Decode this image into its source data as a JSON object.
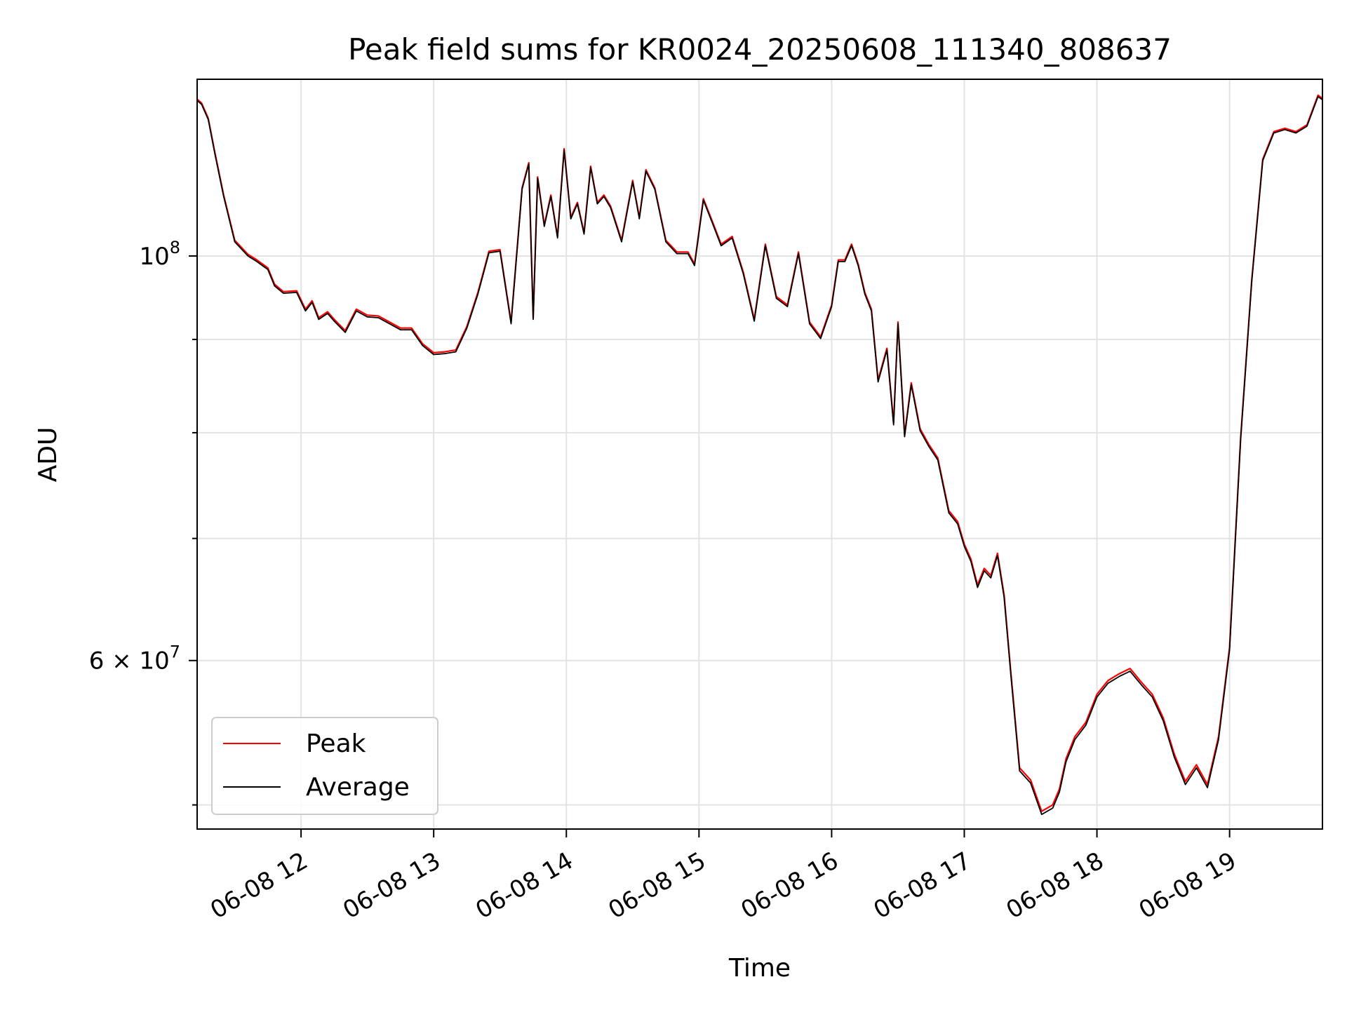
{
  "chart_data": {
    "type": "line",
    "title": "Peak field sums for KR0024_20250608_111340_808637",
    "xlabel": "Time",
    "ylabel": "ADU",
    "x_scale": "time",
    "y_scale": "log",
    "xlim": [
      "2025-06-08 11:13",
      "2025-06-08 19:42"
    ],
    "ylim": [
      48500000,
      125000000
    ],
    "x_ticks": [
      "06-08 12",
      "06-08 13",
      "06-08 14",
      "06-08 15",
      "06-08 16",
      "06-08 17",
      "06-08 18",
      "06-08 19"
    ],
    "y_ticks": [
      "6 × 10^7",
      "10^8"
    ],
    "grid": true,
    "legend": {
      "position": "lower-left",
      "entries": [
        "Peak",
        "Average"
      ]
    },
    "colors": {
      "Peak": "#ff0000",
      "Average": "#000000"
    },
    "x": [
      "11:13",
      "11:15",
      "11:18",
      "11:21",
      "11:25",
      "11:30",
      "11:36",
      "11:40",
      "11:45",
      "11:48",
      "11:52",
      "11:58",
      "12:02",
      "12:05",
      "12:08",
      "12:12",
      "12:15",
      "12:20",
      "12:25",
      "12:30",
      "12:35",
      "12:40",
      "12:45",
      "12:50",
      "12:55",
      "13:00",
      "13:05",
      "13:10",
      "13:15",
      "13:20",
      "13:25",
      "13:30",
      "13:35",
      "13:40",
      "13:43",
      "13:45",
      "13:47",
      "13:50",
      "13:53",
      "13:56",
      "13:59",
      "14:02",
      "14:05",
      "14:08",
      "14:11",
      "14:14",
      "14:17",
      "14:20",
      "14:25",
      "14:30",
      "14:33",
      "14:36",
      "14:40",
      "14:45",
      "14:50",
      "14:55",
      "14:58",
      "15:02",
      "15:06",
      "15:10",
      "15:15",
      "15:20",
      "15:25",
      "15:30",
      "15:35",
      "15:40",
      "15:45",
      "15:50",
      "15:55",
      "16:00",
      "16:03",
      "16:06",
      "16:09",
      "16:12",
      "16:15",
      "16:18",
      "16:21",
      "16:25",
      "16:28",
      "16:30",
      "16:33",
      "16:36",
      "16:40",
      "16:44",
      "16:48",
      "16:53",
      "16:57",
      "17:00",
      "17:03",
      "17:06",
      "17:09",
      "17:12",
      "17:15",
      "17:18",
      "17:21",
      "17:25",
      "17:30",
      "17:35",
      "17:40",
      "17:43",
      "17:46",
      "17:50",
      "17:55",
      "18:00",
      "18:05",
      "18:10",
      "18:15",
      "18:20",
      "18:25",
      "18:30",
      "18:35",
      "18:40",
      "18:45",
      "18:50",
      "18:55",
      "19:00",
      "19:05",
      "19:10",
      "19:15",
      "19:20",
      "19:25",
      "19:30",
      "19:35",
      "19:40",
      "19:42"
    ],
    "series": [
      {
        "name": "Peak",
        "values": [
          121900000,
          121300000,
          119000000,
          114000000,
          108000000,
          102000000,
          100200000,
          99500000,
          98500000,
          96500000,
          95600000,
          95700000,
          93500000,
          94500000,
          92500000,
          93200000,
          92300000,
          91000000,
          93500000,
          92800000,
          92700000,
          92000000,
          91300000,
          91300000,
          89500000,
          88500000,
          88600000,
          88800000,
          91500000,
          95500000,
          100600000,
          100800000,
          92000000,
          109000000,
          112500000,
          92500000,
          110500000,
          104000000,
          108000000,
          102500000,
          114500000,
          105000000,
          107000000,
          103000000,
          112000000,
          107000000,
          108000000,
          106500000,
          102000000,
          110000000,
          105000000,
          111500000,
          109000000,
          102000000,
          100500000,
          100500000,
          99000000,
          107500000,
          104500000,
          101500000,
          102500000,
          98000000,
          92300000,
          101500000,
          95000000,
          94000000,
          100500000,
          92000000,
          90300000,
          94000000,
          99500000,
          99500000,
          101500000,
          99000000,
          95500000,
          93500000,
          85500000,
          89000000,
          81000000,
          92000000,
          79800000,
          85200000,
          80400000,
          78800000,
          77500000,
          72500000,
          71500000,
          69500000,
          68200000,
          66000000,
          67400000,
          66800000,
          68700000,
          65200000,
          59200000,
          52400000,
          51600000,
          49600000,
          50000000,
          51000000,
          53000000,
          54500000,
          55500000,
          57500000,
          58500000,
          59000000,
          59400000,
          58400000,
          57500000,
          55800000,
          53300000,
          51500000,
          52600000,
          51300000,
          54500000,
          61000000,
          79500000,
          97000000,
          113000000,
          117000000,
          117500000,
          117000000,
          118000000,
          122500000,
          122000000
        ]
      },
      {
        "name": "Average",
        "values": [
          121700000,
          121100000,
          118800000,
          113800000,
          107800000,
          101800000,
          100000000,
          99300000,
          98300000,
          96300000,
          95400000,
          95500000,
          93300000,
          94300000,
          92300000,
          93000000,
          92100000,
          90800000,
          93300000,
          92600000,
          92500000,
          91800000,
          91100000,
          91100000,
          89300000,
          88300000,
          88400000,
          88600000,
          91300000,
          95300000,
          100400000,
          100600000,
          91800000,
          108800000,
          112300000,
          92300000,
          110300000,
          103800000,
          107800000,
          102300000,
          114300000,
          104800000,
          106800000,
          102800000,
          111800000,
          106800000,
          107800000,
          106300000,
          101800000,
          109800000,
          104800000,
          111300000,
          108800000,
          101800000,
          100300000,
          100300000,
          98800000,
          107300000,
          104300000,
          101300000,
          102300000,
          97800000,
          92100000,
          101300000,
          94800000,
          93800000,
          100300000,
          91800000,
          90100000,
          93800000,
          99300000,
          99300000,
          101300000,
          98800000,
          95300000,
          93300000,
          85300000,
          88800000,
          80800000,
          91800000,
          79600000,
          85000000,
          80200000,
          78600000,
          77300000,
          72300000,
          71300000,
          69300000,
          68000000,
          65800000,
          67200000,
          66600000,
          68500000,
          65000000,
          59000000,
          52200000,
          51400000,
          49400000,
          49800000,
          50800000,
          52800000,
          54300000,
          55300000,
          57300000,
          58300000,
          58800000,
          59200000,
          58200000,
          57300000,
          55600000,
          53100000,
          51300000,
          52400000,
          51100000,
          54300000,
          60800000,
          79300000,
          96800000,
          112800000,
          116800000,
          117300000,
          116800000,
          117800000,
          122300000,
          121800000
        ]
      }
    ]
  }
}
